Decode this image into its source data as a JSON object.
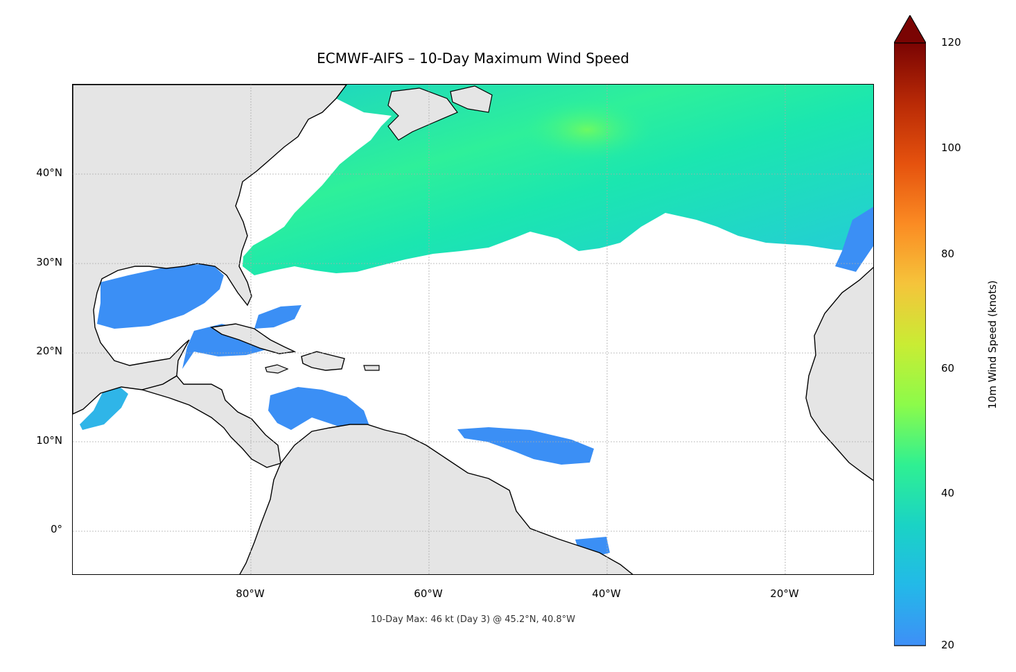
{
  "title": "ECMWF-AIFS – 10-Day Maximum Wind Speed",
  "footnote": "10-Day Max: 46 kt (Day 3) @ 45.2°N, 40.8°W",
  "map": {
    "lon_range": [
      -100,
      -10
    ],
    "lat_range": [
      -5,
      50
    ],
    "lat_ticks": [
      "40°N",
      "30°N",
      "20°N",
      "10°N",
      "0°"
    ],
    "lon_ticks": [
      "80°W",
      "60°W",
      "40°W",
      "20°W"
    ],
    "land_color": "#e5e5e5",
    "ocean_color": "#ffffff"
  },
  "colorbar": {
    "label": "10m Wind Speed (knots)",
    "ticks": [
      "120",
      "100",
      "80",
      "60",
      "40",
      "20"
    ],
    "min": 20,
    "max": 120,
    "extend": "max",
    "colormap": "turbo"
  },
  "max_wind": {
    "value": 46,
    "unit": "kt",
    "day": 3,
    "lat": 45.2,
    "lon": -40.8
  }
}
